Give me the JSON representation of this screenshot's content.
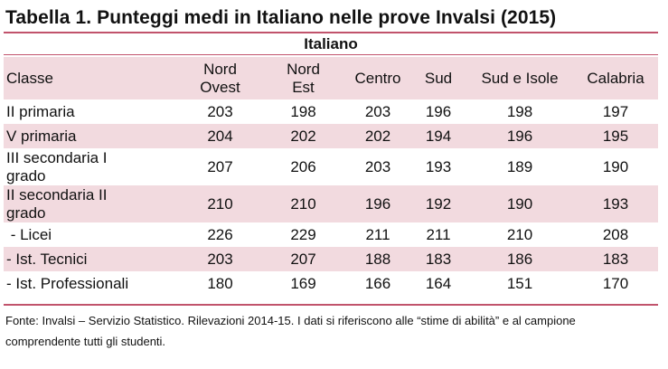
{
  "title": "Tabella 1. Punteggi medi in Italiano nelle prove Invalsi (2015)",
  "section": "Italiano",
  "headers": [
    "Classe",
    "Nord Ovest",
    "Nord Est",
    "Centro",
    "Sud",
    "Sud e Isole",
    "Calabria"
  ],
  "headers_split": {
    "nord_ovest": [
      "Nord",
      "Ovest"
    ],
    "nord_est": [
      "Nord",
      "Est"
    ]
  },
  "rows": [
    {
      "classe": "II primaria",
      "values": [
        "203",
        "198",
        "203",
        "196",
        "198",
        "197"
      ]
    },
    {
      "classe": "V primaria",
      "values": [
        "204",
        "202",
        "202",
        "194",
        "196",
        "195"
      ]
    },
    {
      "classe_lines": [
        "III secondaria I",
        "grado"
      ],
      "values": [
        "207",
        "206",
        "203",
        "193",
        "189",
        "190"
      ]
    },
    {
      "classe_lines": [
        "II secondaria II",
        "grado"
      ],
      "values": [
        "210",
        "210",
        "196",
        "192",
        "190",
        "193"
      ]
    },
    {
      "classe": " - Licei",
      "values": [
        "226",
        "229",
        "211",
        "211",
        "210",
        "208"
      ]
    },
    {
      "classe": "- Ist. Tecnici",
      "values": [
        "203",
        "207",
        "188",
        "183",
        "186",
        "183"
      ]
    },
    {
      "classe": "- Ist. Professionali",
      "values": [
        "180",
        "169",
        "166",
        "164",
        "151",
        "170"
      ]
    }
  ],
  "footnote_lines": [
    "Fonte: Invalsi – Servizio Statistico. Rilevazioni 2014-15. I dati si riferiscono alle “stime di abilità” e al campione",
    "comprendente tutti gli studenti."
  ],
  "colors": {
    "accent_rule": "#c1536c",
    "shaded_row": "#f2dadf"
  }
}
